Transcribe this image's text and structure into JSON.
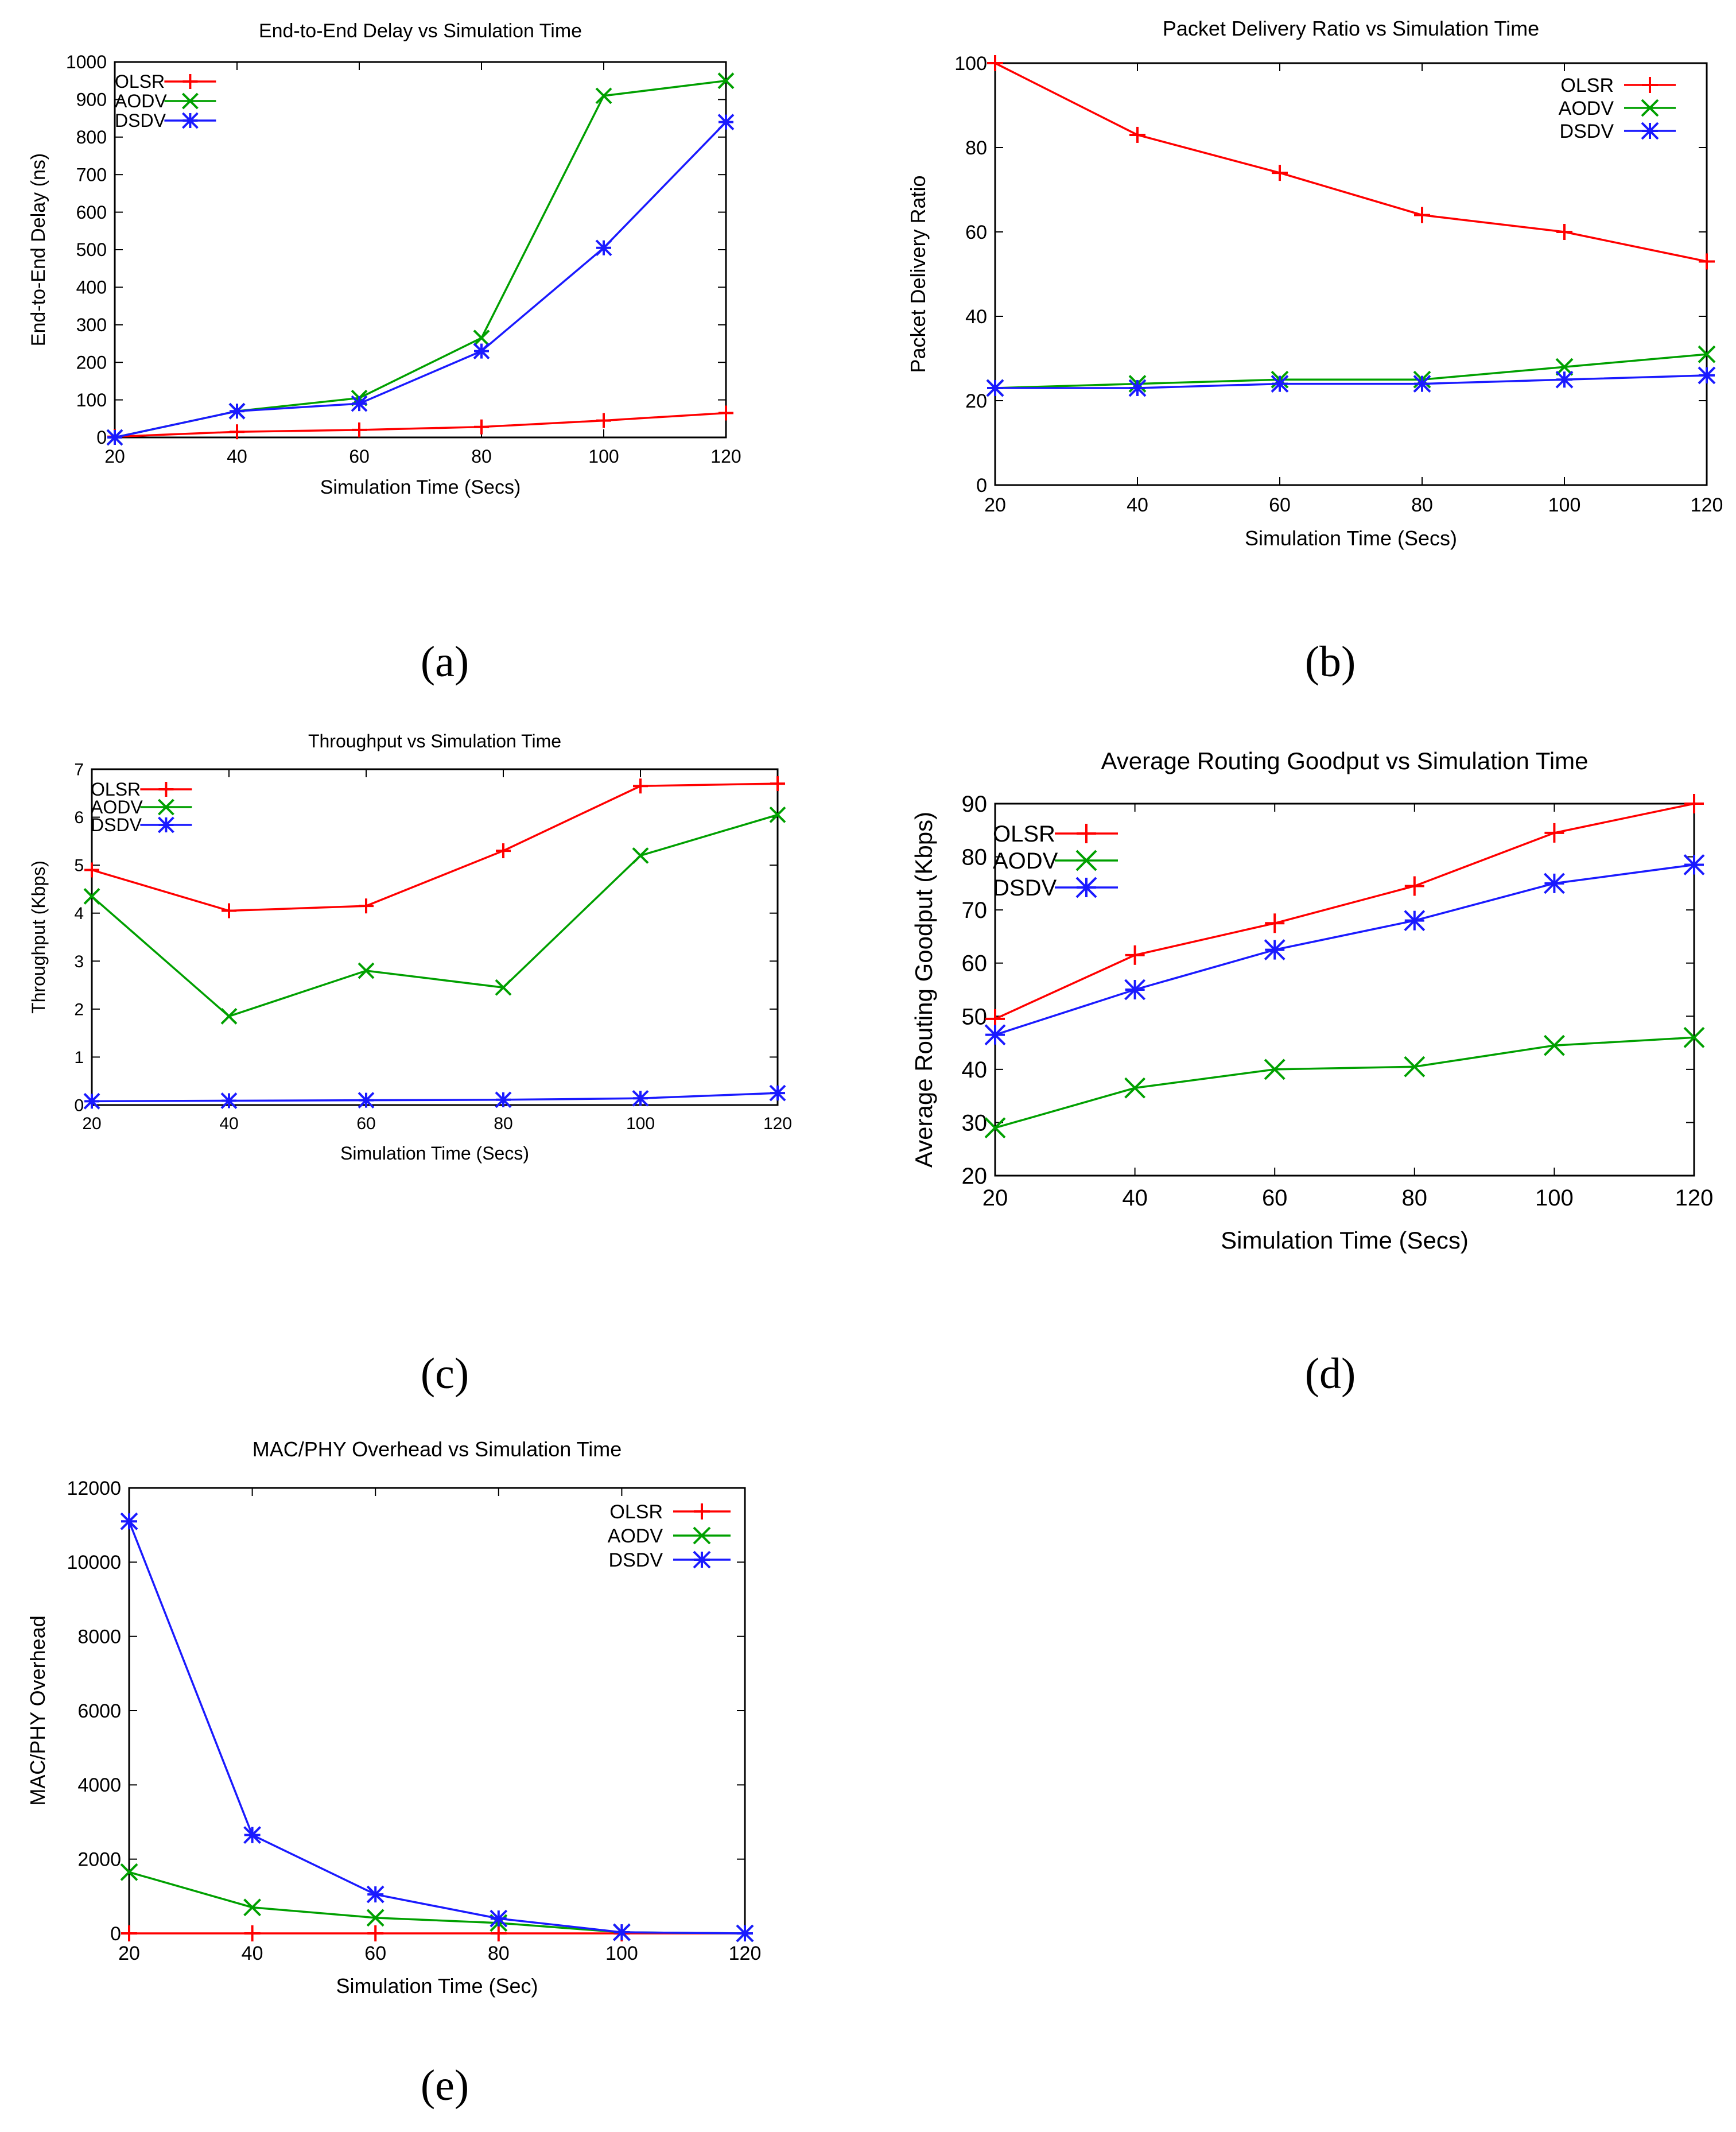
{
  "colors": {
    "OLSR": "#ff0000",
    "AODV": "#00a000",
    "DSDV": "#1a1aff",
    "axis": "#000000"
  },
  "chart_data": [
    {
      "id": "a",
      "caption": "(a)",
      "type": "line",
      "title": "End-to-End Delay vs Simulation Time",
      "xlabel": "Simulation Time (Secs)",
      "ylabel": "End-to-End Delay (ns)",
      "x": [
        20,
        40,
        60,
        80,
        100,
        120
      ],
      "xlim": [
        20,
        120
      ],
      "ylim": [
        0,
        1000
      ],
      "xticks": [
        "20",
        "40",
        "60",
        "80",
        "100",
        "120"
      ],
      "yticks": [
        "0",
        "100",
        "200",
        "300",
        "400",
        "500",
        "600",
        "700",
        "800",
        "900",
        "1000"
      ],
      "legend": "top-left",
      "series": [
        {
          "name": "OLSR",
          "marker": "plus",
          "values": [
            2,
            15,
            20,
            28,
            45,
            65
          ]
        },
        {
          "name": "AODV",
          "marker": "x",
          "values": [
            0,
            70,
            105,
            265,
            910,
            950
          ]
        },
        {
          "name": "DSDV",
          "marker": "star",
          "values": [
            0,
            70,
            90,
            230,
            505,
            840
          ]
        }
      ]
    },
    {
      "id": "b",
      "caption": "(b)",
      "type": "line",
      "title": "Packet Delivery Ratio vs Simulation Time",
      "xlabel": "Simulation Time (Secs)",
      "ylabel": "Packet Delivery Ratio",
      "x": [
        20,
        40,
        60,
        80,
        100,
        120
      ],
      "xlim": [
        20,
        120
      ],
      "ylim": [
        0,
        100
      ],
      "xticks": [
        "20",
        "40",
        "60",
        "80",
        "100",
        "120"
      ],
      "yticks": [
        "0",
        "20",
        "40",
        "60",
        "80",
        "100"
      ],
      "legend": "top-right",
      "series": [
        {
          "name": "OLSR",
          "marker": "plus",
          "values": [
            100,
            83,
            74,
            64,
            60,
            53
          ]
        },
        {
          "name": "AODV",
          "marker": "x",
          "values": [
            23,
            24,
            25,
            25,
            28,
            31
          ]
        },
        {
          "name": "DSDV",
          "marker": "star",
          "values": [
            23,
            23,
            24,
            24,
            25,
            26
          ]
        }
      ]
    },
    {
      "id": "c",
      "caption": "(c)",
      "type": "line",
      "title": "Throughput vs Simulation Time",
      "xlabel": "Simulation Time (Secs)",
      "ylabel": "Throughput (Kbps)",
      "x": [
        20,
        40,
        60,
        80,
        100,
        120
      ],
      "xlim": [
        20,
        120
      ],
      "ylim": [
        0,
        7
      ],
      "xticks": [
        "20",
        "40",
        "60",
        "80",
        "100",
        "120"
      ],
      "yticks": [
        "0",
        "1",
        "2",
        "3",
        "4",
        "5",
        "6",
        "7"
      ],
      "legend": "top-left",
      "series": [
        {
          "name": "OLSR",
          "marker": "plus",
          "values": [
            4.9,
            4.05,
            4.15,
            5.3,
            6.65,
            6.7
          ]
        },
        {
          "name": "AODV",
          "marker": "x",
          "values": [
            4.35,
            1.85,
            2.8,
            2.45,
            5.2,
            6.05
          ]
        },
        {
          "name": "DSDV",
          "marker": "star",
          "values": [
            0.08,
            0.09,
            0.1,
            0.11,
            0.14,
            0.25
          ]
        }
      ]
    },
    {
      "id": "d",
      "caption": "(d)",
      "type": "line",
      "title": "Average Routing Goodput vs Simulation Time",
      "xlabel": "Simulation Time (Secs)",
      "ylabel": "Average Routing Goodput (Kbps)",
      "x": [
        20,
        40,
        60,
        80,
        100,
        120
      ],
      "xlim": [
        20,
        120
      ],
      "ylim": [
        20,
        90
      ],
      "xticks": [
        "20",
        "40",
        "60",
        "80",
        "100",
        "120"
      ],
      "yticks": [
        "20",
        "30",
        "40",
        "50",
        "60",
        "70",
        "80",
        "90"
      ],
      "legend": "top-left",
      "series": [
        {
          "name": "OLSR",
          "marker": "plus",
          "values": [
            49.5,
            61.5,
            67.5,
            74.5,
            84.5,
            90
          ]
        },
        {
          "name": "AODV",
          "marker": "x",
          "values": [
            29,
            36.5,
            40,
            40.5,
            44.5,
            46
          ]
        },
        {
          "name": "DSDV",
          "marker": "star",
          "values": [
            46.5,
            55,
            62.5,
            68,
            75,
            78.5
          ]
        }
      ]
    },
    {
      "id": "e",
      "caption": "(e)",
      "type": "line",
      "title": "MAC/PHY Overhead vs Simulation Time",
      "xlabel": "Simulation Time (Sec)",
      "ylabel": "MAC/PHY Overhead",
      "x": [
        20,
        40,
        60,
        80,
        100,
        120
      ],
      "xlim": [
        20,
        120
      ],
      "ylim": [
        0,
        12000
      ],
      "xticks": [
        "20",
        "40",
        "60",
        "80",
        "100",
        "120"
      ],
      "yticks": [
        "0",
        "2000",
        "4000",
        "6000",
        "8000",
        "10000",
        "12000"
      ],
      "legend": "top-right",
      "series": [
        {
          "name": "OLSR",
          "marker": "plus",
          "values": [
            0,
            0,
            0,
            0,
            0,
            0
          ]
        },
        {
          "name": "AODV",
          "marker": "x",
          "values": [
            1650,
            700,
            420,
            280,
            30,
            0
          ]
        },
        {
          "name": "DSDV",
          "marker": "star",
          "values": [
            11100,
            2650,
            1050,
            400,
            30,
            0
          ]
        }
      ]
    }
  ]
}
